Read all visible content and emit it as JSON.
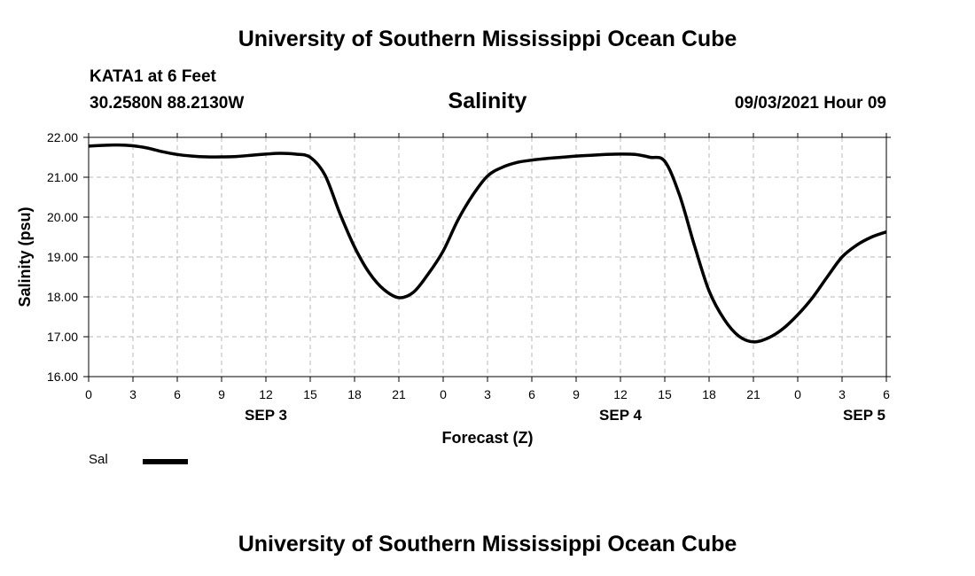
{
  "header": {
    "title": "University of Southern Mississippi Ocean Cube",
    "station": "KATA1 at 6 Feet",
    "coordinates": "30.2580N  88.2130W",
    "datetime": "09/03/2021 Hour 09"
  },
  "footer": {
    "title": "University of Southern Mississippi Ocean Cube"
  },
  "legend": {
    "label": "Sal",
    "color": "#000000"
  },
  "chart_data": {
    "type": "line",
    "title": "Salinity",
    "xlabel": "Forecast (Z)",
    "ylabel": "Salinity (psu)",
    "ylim": [
      16,
      22
    ],
    "xlim": [
      0,
      54
    ],
    "grid": true,
    "legend_position": "bottom-left",
    "y_ticks": [
      "16.00",
      "17.00",
      "18.00",
      "19.00",
      "20.00",
      "21.00",
      "22.00"
    ],
    "x_ticks": [
      {
        "x": 0,
        "label": "0"
      },
      {
        "x": 3,
        "label": "3"
      },
      {
        "x": 6,
        "label": "6"
      },
      {
        "x": 9,
        "label": "9"
      },
      {
        "x": 12,
        "label": "12"
      },
      {
        "x": 15,
        "label": "15"
      },
      {
        "x": 18,
        "label": "18"
      },
      {
        "x": 21,
        "label": "21"
      },
      {
        "x": 24,
        "label": "0"
      },
      {
        "x": 27,
        "label": "3"
      },
      {
        "x": 30,
        "label": "6"
      },
      {
        "x": 33,
        "label": "9"
      },
      {
        "x": 36,
        "label": "12"
      },
      {
        "x": 39,
        "label": "15"
      },
      {
        "x": 42,
        "label": "18"
      },
      {
        "x": 45,
        "label": "21"
      },
      {
        "x": 48,
        "label": "0"
      },
      {
        "x": 51,
        "label": "3"
      },
      {
        "x": 54,
        "label": "6"
      }
    ],
    "date_labels": [
      {
        "x": 12,
        "label": "SEP 3"
      },
      {
        "x": 36,
        "label": "SEP 4"
      },
      {
        "x": 52.5,
        "label": "SEP 5"
      }
    ],
    "series": [
      {
        "name": "Sal",
        "color": "#000000",
        "x": [
          0,
          1,
          2,
          3,
          4,
          5,
          6,
          7,
          8,
          9,
          10,
          11,
          12,
          13,
          14,
          15,
          16,
          17,
          18,
          19,
          20,
          21,
          22,
          23,
          24,
          25,
          26,
          27,
          28,
          29,
          30,
          31,
          32,
          33,
          34,
          35,
          36,
          37,
          38,
          39,
          40,
          41,
          42,
          43,
          44,
          45,
          46,
          47,
          48,
          49,
          50,
          51,
          52,
          53,
          54
        ],
        "y": [
          21.78,
          21.8,
          21.81,
          21.79,
          21.73,
          21.64,
          21.57,
          21.53,
          21.51,
          21.51,
          21.52,
          21.55,
          21.58,
          21.6,
          21.58,
          21.5,
          21.05,
          20.1,
          19.25,
          18.6,
          18.18,
          17.98,
          18.12,
          18.58,
          19.15,
          19.93,
          20.55,
          21.03,
          21.25,
          21.37,
          21.43,
          21.47,
          21.5,
          21.53,
          21.55,
          21.57,
          21.58,
          21.57,
          21.5,
          21.4,
          20.55,
          19.3,
          18.15,
          17.45,
          17.02,
          16.87,
          16.97,
          17.2,
          17.55,
          17.98,
          18.5,
          19.0,
          19.3,
          19.5,
          19.63
        ]
      }
    ]
  }
}
